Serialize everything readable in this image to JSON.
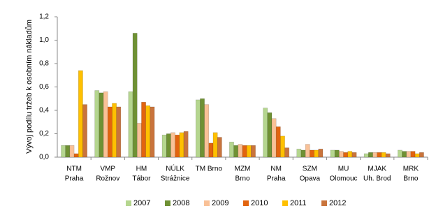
{
  "chart_data": {
    "type": "bar",
    "y_label": "Vývoj podílu tržeb k osobním nákladům",
    "categories": [
      [
        "NTM",
        "Praha"
      ],
      [
        "VMP",
        "Rožnov"
      ],
      [
        "HM",
        "Tábor"
      ],
      [
        "NÚLK",
        "Strážnice"
      ],
      [
        "TM Brno"
      ],
      [
        "MZM",
        "Brno"
      ],
      [
        "NM",
        "Praha"
      ],
      [
        "SZM",
        "Opava"
      ],
      [
        "MU",
        "Olomouc"
      ],
      [
        "MJAK",
        "Uh. Brod"
      ],
      [
        "MRK",
        "Brno"
      ]
    ],
    "series": [
      {
        "name": "2007",
        "color": "#b5d68f",
        "values": [
          0.1,
          0.57,
          0.56,
          0.19,
          0.49,
          0.13,
          0.42,
          0.07,
          0.06,
          0.03,
          0.06
        ]
      },
      {
        "name": "2008",
        "color": "#6f9134",
        "values": [
          0.1,
          0.55,
          1.06,
          0.2,
          0.5,
          0.1,
          0.38,
          0.06,
          0.06,
          0.04,
          0.05
        ]
      },
      {
        "name": "2009",
        "color": "#f9c197",
        "values": [
          0.1,
          0.56,
          0.29,
          0.21,
          0.45,
          0.11,
          0.33,
          0.11,
          0.05,
          0.04,
          0.05
        ]
      },
      {
        "name": "2010",
        "color": "#e2640f",
        "values": [
          0.03,
          0.43,
          0.47,
          0.19,
          0.12,
          0.1,
          0.26,
          0.06,
          0.04,
          0.04,
          0.05
        ]
      },
      {
        "name": "2011",
        "color": "#ffc000",
        "values": [
          0.74,
          0.46,
          0.44,
          0.21,
          0.21,
          0.1,
          0.18,
          0.06,
          0.05,
          0.04,
          0.03
        ]
      },
      {
        "name": "2012",
        "color": "#c9743c",
        "values": [
          0.45,
          0.43,
          0.43,
          0.22,
          0.17,
          0.1,
          0.08,
          0.07,
          0.04,
          0.03,
          0.04
        ]
      }
    ],
    "ylim": [
      0,
      1.2
    ],
    "yticks": [
      {
        "value": 0,
        "label": "0,0"
      },
      {
        "value": 0.2,
        "label": "0,2"
      },
      {
        "value": 0.4,
        "label": "0,4"
      },
      {
        "value": 0.6,
        "label": "0,6"
      },
      {
        "value": 0.8,
        "label": "0,8"
      },
      {
        "value": 1,
        "label": "1,0"
      },
      {
        "value": 1.2,
        "label": "1,2"
      }
    ],
    "grid": false
  }
}
